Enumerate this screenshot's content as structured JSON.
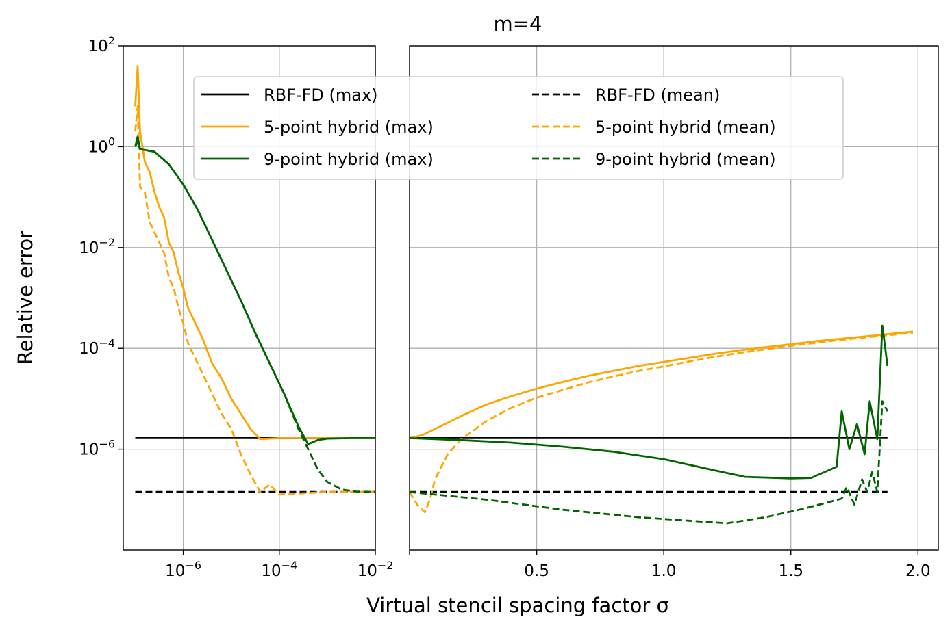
{
  "chart_data": {
    "type": "line",
    "title": "m=4",
    "xlabel": "Virtual stencil spacing factor σ",
    "ylabel": "Relative error",
    "yscale": "log",
    "ylim_exp": [
      -8,
      2
    ],
    "y_ticks": [
      {
        "value": 100,
        "base": "10",
        "exp": "2"
      },
      {
        "value": 1,
        "base": "10",
        "exp": "0"
      },
      {
        "value": 0.01,
        "base": "10",
        "exp": "−2"
      },
      {
        "value": 0.0001,
        "base": "10",
        "exp": "−4"
      },
      {
        "value": 1e-06,
        "base": "10",
        "exp": "−6"
      }
    ],
    "panels": {
      "left": {
        "xscale": "log",
        "xlim_exp": [
          -7.25,
          -2
        ],
        "x_ticks": [
          {
            "value": 1e-06,
            "base": "10",
            "exp": "−6"
          },
          {
            "value": 0.0001,
            "base": "10",
            "exp": "−4"
          },
          {
            "value": 0.01,
            "base": "10",
            "exp": "−2"
          }
        ]
      },
      "right": {
        "xscale": "linear",
        "xlim": [
          0,
          2.08
        ],
        "x_ticks": [
          {
            "value": 0.5,
            "label": "0.5"
          },
          {
            "value": 1.0,
            "label": "1.0"
          },
          {
            "value": 1.5,
            "label": "1.5"
          },
          {
            "value": 2.0,
            "label": "2.0"
          }
        ]
      }
    },
    "legend": {
      "position": "upper center",
      "columns": 2
    },
    "series": [
      {
        "name": "RBF-FD (max)",
        "color": "#000000",
        "style": "solid",
        "left": [
          [
            -7.0,
            -5.78
          ],
          [
            -2.0,
            -5.78
          ]
        ],
        "right": [
          [
            0.0,
            -5.78
          ],
          [
            1.88,
            -5.78
          ]
        ]
      },
      {
        "name": "RBF-FD (mean)",
        "color": "#000000",
        "style": "dashed",
        "left": [
          [
            -7.0,
            -6.85
          ],
          [
            -2.0,
            -6.85
          ]
        ],
        "right": [
          [
            0.0,
            -6.85
          ],
          [
            1.88,
            -6.85
          ]
        ]
      },
      {
        "name": "5-point hybrid (max)",
        "color": "#ffa500",
        "style": "solid",
        "left": [
          [
            -7.0,
            0.8
          ],
          [
            -6.95,
            1.6
          ],
          [
            -6.9,
            0.3
          ],
          [
            -6.8,
            -0.3
          ],
          [
            -6.7,
            -0.5
          ],
          [
            -6.6,
            -0.9
          ],
          [
            -6.5,
            -1.2
          ],
          [
            -6.4,
            -1.4
          ],
          [
            -6.3,
            -1.9
          ],
          [
            -6.2,
            -2.1
          ],
          [
            -6.1,
            -2.5
          ],
          [
            -6.0,
            -2.8
          ],
          [
            -5.9,
            -3.2
          ],
          [
            -5.8,
            -3.4
          ],
          [
            -5.6,
            -3.8
          ],
          [
            -5.4,
            -4.3
          ],
          [
            -5.2,
            -4.6
          ],
          [
            -5.0,
            -5.0
          ],
          [
            -4.8,
            -5.3
          ],
          [
            -4.6,
            -5.6
          ],
          [
            -4.4,
            -5.8
          ],
          [
            -4.0,
            -5.78
          ],
          [
            -3.0,
            -5.78
          ],
          [
            -2.0,
            -5.78
          ]
        ],
        "right": [
          [
            0.0,
            -5.78
          ],
          [
            0.05,
            -5.72
          ],
          [
            0.1,
            -5.6
          ],
          [
            0.2,
            -5.35
          ],
          [
            0.3,
            -5.12
          ],
          [
            0.4,
            -4.95
          ],
          [
            0.5,
            -4.8
          ],
          [
            0.6,
            -4.67
          ],
          [
            0.7,
            -4.55
          ],
          [
            0.8,
            -4.45
          ],
          [
            0.9,
            -4.35
          ],
          [
            1.0,
            -4.27
          ],
          [
            1.1,
            -4.19
          ],
          [
            1.2,
            -4.11
          ],
          [
            1.3,
            -4.04
          ],
          [
            1.4,
            -3.98
          ],
          [
            1.5,
            -3.92
          ],
          [
            1.6,
            -3.86
          ],
          [
            1.7,
            -3.81
          ],
          [
            1.8,
            -3.76
          ],
          [
            1.9,
            -3.71
          ],
          [
            1.98,
            -3.67
          ]
        ]
      },
      {
        "name": "5-point hybrid (mean)",
        "color": "#ffa500",
        "style": "dashed",
        "left": [
          [
            -7.0,
            0.3
          ],
          [
            -6.95,
            0.8
          ],
          [
            -6.9,
            -0.8
          ],
          [
            -6.8,
            -0.9
          ],
          [
            -6.7,
            -1.5
          ],
          [
            -6.6,
            -1.7
          ],
          [
            -6.5,
            -1.9
          ],
          [
            -6.4,
            -2.1
          ],
          [
            -6.3,
            -2.6
          ],
          [
            -6.2,
            -2.8
          ],
          [
            -6.1,
            -3.2
          ],
          [
            -6.0,
            -3.5
          ],
          [
            -5.9,
            -3.9
          ],
          [
            -5.8,
            -4.1
          ],
          [
            -5.6,
            -4.5
          ],
          [
            -5.4,
            -4.9
          ],
          [
            -5.2,
            -5.3
          ],
          [
            -5.0,
            -5.6
          ],
          [
            -4.8,
            -6.1
          ],
          [
            -4.6,
            -6.5
          ],
          [
            -4.4,
            -6.85
          ],
          [
            -4.2,
            -6.7
          ],
          [
            -4.0,
            -6.9
          ],
          [
            -3.0,
            -6.85
          ],
          [
            -2.0,
            -6.85
          ]
        ],
        "right": [
          [
            0.0,
            -6.85
          ],
          [
            0.03,
            -7.1
          ],
          [
            0.06,
            -7.25
          ],
          [
            0.08,
            -7.0
          ],
          [
            0.1,
            -6.6
          ],
          [
            0.15,
            -6.1
          ],
          [
            0.2,
            -5.82
          ],
          [
            0.3,
            -5.45
          ],
          [
            0.4,
            -5.18
          ],
          [
            0.5,
            -4.98
          ],
          [
            0.6,
            -4.83
          ],
          [
            0.7,
            -4.68
          ],
          [
            0.8,
            -4.56
          ],
          [
            0.9,
            -4.45
          ],
          [
            1.0,
            -4.36
          ],
          [
            1.1,
            -4.26
          ],
          [
            1.2,
            -4.17
          ],
          [
            1.3,
            -4.09
          ],
          [
            1.4,
            -4.02
          ],
          [
            1.5,
            -3.95
          ],
          [
            1.6,
            -3.89
          ],
          [
            1.7,
            -3.83
          ],
          [
            1.8,
            -3.78
          ],
          [
            1.9,
            -3.73
          ],
          [
            1.98,
            -3.69
          ]
        ]
      },
      {
        "name": "9-point hybrid (max)",
        "color": "#006400",
        "style": "solid",
        "left": [
          [
            -7.0,
            0.0
          ],
          [
            -6.95,
            0.2
          ],
          [
            -6.9,
            -0.05
          ],
          [
            -6.6,
            -0.1
          ],
          [
            -6.3,
            -0.35
          ],
          [
            -6.0,
            -0.75
          ],
          [
            -5.7,
            -1.25
          ],
          [
            -5.4,
            -1.85
          ],
          [
            -5.1,
            -2.45
          ],
          [
            -4.8,
            -3.05
          ],
          [
            -4.5,
            -3.7
          ],
          [
            -4.2,
            -4.3
          ],
          [
            -3.9,
            -4.9
          ],
          [
            -3.6,
            -5.55
          ],
          [
            -3.4,
            -5.9
          ],
          [
            -3.2,
            -5.82
          ],
          [
            -3.0,
            -5.79
          ],
          [
            -2.5,
            -5.78
          ],
          [
            -2.0,
            -5.78
          ]
        ],
        "right": [
          [
            0.0,
            -5.78
          ],
          [
            0.2,
            -5.82
          ],
          [
            0.4,
            -5.87
          ],
          [
            0.6,
            -5.95
          ],
          [
            0.8,
            -6.05
          ],
          [
            1.0,
            -6.2
          ],
          [
            1.2,
            -6.42
          ],
          [
            1.32,
            -6.55
          ],
          [
            1.5,
            -6.58
          ],
          [
            1.58,
            -6.57
          ],
          [
            1.68,
            -6.35
          ],
          [
            1.7,
            -5.25
          ],
          [
            1.73,
            -6.0
          ],
          [
            1.76,
            -5.5
          ],
          [
            1.79,
            -6.1
          ],
          [
            1.81,
            -5.05
          ],
          [
            1.84,
            -5.8
          ],
          [
            1.86,
            -3.55
          ],
          [
            1.88,
            -4.35
          ]
        ]
      },
      {
        "name": "9-point hybrid (mean)",
        "color": "#006400",
        "style": "dashed",
        "left": [
          [
            -7.0,
            0.0
          ],
          [
            -6.95,
            0.1
          ],
          [
            -6.9,
            -0.05
          ],
          [
            -6.6,
            -0.1
          ],
          [
            -6.3,
            -0.35
          ],
          [
            -6.0,
            -0.75
          ],
          [
            -5.7,
            -1.25
          ],
          [
            -5.4,
            -1.85
          ],
          [
            -5.1,
            -2.45
          ],
          [
            -4.8,
            -3.05
          ],
          [
            -4.5,
            -3.7
          ],
          [
            -4.2,
            -4.3
          ],
          [
            -3.9,
            -4.9
          ],
          [
            -3.6,
            -5.6
          ],
          [
            -3.4,
            -6.0
          ],
          [
            -3.2,
            -6.4
          ],
          [
            -3.0,
            -6.65
          ],
          [
            -2.7,
            -6.8
          ],
          [
            -2.4,
            -6.84
          ],
          [
            -2.0,
            -6.85
          ]
        ],
        "right": [
          [
            0.0,
            -6.85
          ],
          [
            0.3,
            -7.0
          ],
          [
            0.6,
            -7.2
          ],
          [
            0.9,
            -7.35
          ],
          [
            1.1,
            -7.42
          ],
          [
            1.25,
            -7.47
          ],
          [
            1.4,
            -7.35
          ],
          [
            1.55,
            -7.18
          ],
          [
            1.65,
            -7.05
          ],
          [
            1.7,
            -6.98
          ],
          [
            1.72,
            -6.75
          ],
          [
            1.75,
            -7.1
          ],
          [
            1.78,
            -6.6
          ],
          [
            1.8,
            -6.85
          ],
          [
            1.82,
            -6.45
          ],
          [
            1.84,
            -6.85
          ],
          [
            1.86,
            -5.05
          ],
          [
            1.88,
            -5.25
          ]
        ]
      }
    ]
  }
}
